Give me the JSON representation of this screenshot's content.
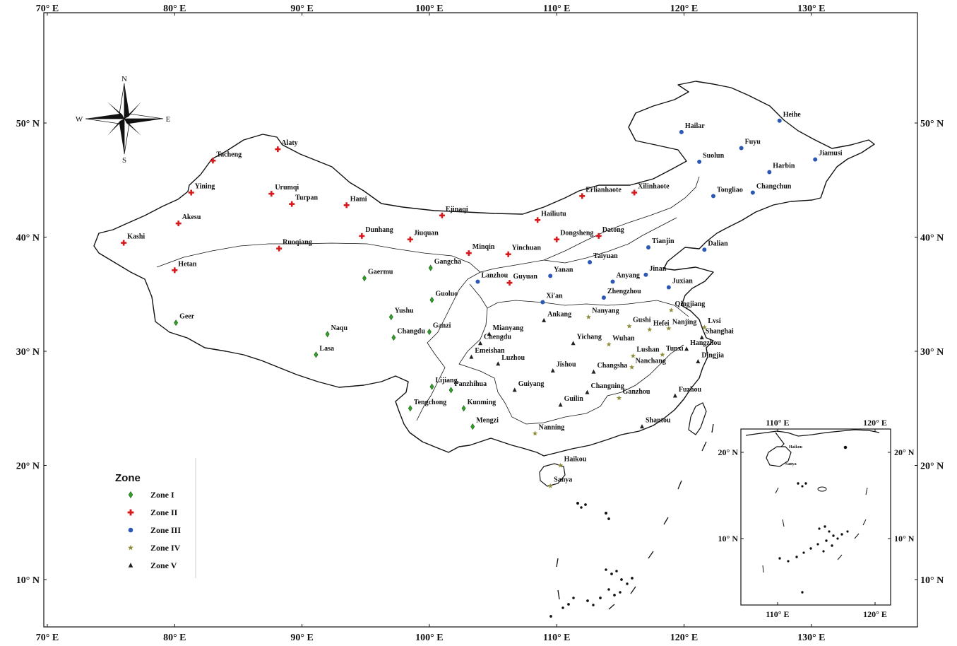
{
  "map": {
    "lon_ticks": [
      {
        "lon": 70,
        "label": "70° E"
      },
      {
        "lon": 80,
        "label": "80° E"
      },
      {
        "lon": 90,
        "label": "90° E"
      },
      {
        "lon": 100,
        "label": "100° E"
      },
      {
        "lon": 110,
        "label": "110° E"
      },
      {
        "lon": 120,
        "label": "120° E"
      },
      {
        "lon": 130,
        "label": "130° E"
      }
    ],
    "lat_ticks": [
      {
        "lat": 10,
        "label": "10° N"
      },
      {
        "lat": 20,
        "label": "20° N"
      },
      {
        "lat": 30,
        "label": "30° N"
      },
      {
        "lat": 40,
        "label": "40° N"
      },
      {
        "lat": 50,
        "label": "50° N"
      }
    ],
    "compass": {
      "n": "N",
      "s": "S",
      "w": "W",
      "e": "E"
    },
    "legend": {
      "title": "Zone",
      "items": [
        {
          "label": "Zone I",
          "symbol": "diamond",
          "color": "#33a02c"
        },
        {
          "label": "Zone II",
          "symbol": "cross",
          "color": "#d7191c"
        },
        {
          "label": "Zone III",
          "symbol": "circle",
          "color": "#2b57b5"
        },
        {
          "label": "Zone IV",
          "symbol": "star",
          "color": "#8f8c3a"
        },
        {
          "label": "Zone V",
          "symbol": "triangle",
          "color": "#222222"
        }
      ]
    },
    "stations": [
      {
        "name": "Geer",
        "zone": 0,
        "lon": 80.1,
        "lat": 32.5
      },
      {
        "name": "Gaermu",
        "zone": 0,
        "lon": 94.9,
        "lat": 36.4
      },
      {
        "name": "Gangcha",
        "zone": 0,
        "lon": 100.1,
        "lat": 37.3
      },
      {
        "name": "Guoluo",
        "zone": 0,
        "lon": 100.2,
        "lat": 34.5
      },
      {
        "name": "Yushu",
        "zone": 0,
        "lon": 97.0,
        "lat": 33.0
      },
      {
        "name": "Naqu",
        "zone": 0,
        "lon": 92.0,
        "lat": 31.5
      },
      {
        "name": "Changdu",
        "zone": 0,
        "lon": 97.2,
        "lat": 31.2
      },
      {
        "name": "Ganzi",
        "zone": 0,
        "lon": 100.0,
        "lat": 31.7
      },
      {
        "name": "Lasa",
        "zone": 0,
        "lon": 91.1,
        "lat": 29.7
      },
      {
        "name": "Lijiang",
        "zone": 0,
        "lon": 100.2,
        "lat": 26.9
      },
      {
        "name": "Panzhihua",
        "zone": 0,
        "lon": 101.7,
        "lat": 26.6
      },
      {
        "name": "Tengchong",
        "zone": 0,
        "lon": 98.5,
        "lat": 25.0
      },
      {
        "name": "Kunming",
        "zone": 0,
        "lon": 102.7,
        "lat": 25.0
      },
      {
        "name": "Mengzi",
        "zone": 0,
        "lon": 103.4,
        "lat": 23.4
      },
      {
        "name": "Alaty",
        "zone": 1,
        "lon": 88.1,
        "lat": 47.7
      },
      {
        "name": "Tacheng",
        "zone": 1,
        "lon": 83.0,
        "lat": 46.7
      },
      {
        "name": "Yining",
        "zone": 1,
        "lon": 81.3,
        "lat": 43.9
      },
      {
        "name": "Urumqi",
        "zone": 1,
        "lon": 87.6,
        "lat": 43.8
      },
      {
        "name": "Turpan",
        "zone": 1,
        "lon": 89.2,
        "lat": 42.9
      },
      {
        "name": "Hami",
        "zone": 1,
        "lon": 93.5,
        "lat": 42.8
      },
      {
        "name": "Akesu",
        "zone": 1,
        "lon": 80.3,
        "lat": 41.2
      },
      {
        "name": "Kashi",
        "zone": 1,
        "lon": 76.0,
        "lat": 39.5
      },
      {
        "name": "Ruoqiang",
        "zone": 1,
        "lon": 88.2,
        "lat": 39.0
      },
      {
        "name": "Hetan",
        "zone": 1,
        "lon": 80.0,
        "lat": 37.1
      },
      {
        "name": "Ejinaqi",
        "zone": 1,
        "lon": 101.0,
        "lat": 41.9
      },
      {
        "name": "Dunhang",
        "zone": 1,
        "lon": 94.7,
        "lat": 40.1
      },
      {
        "name": "Jiuquan",
        "zone": 1,
        "lon": 98.5,
        "lat": 39.8
      },
      {
        "name": "Minqin",
        "zone": 1,
        "lon": 103.1,
        "lat": 38.6
      },
      {
        "name": "Yinchuan",
        "zone": 1,
        "lon": 106.2,
        "lat": 38.5
      },
      {
        "name": "Guyuan",
        "zone": 1,
        "lon": 106.3,
        "lat": 36.0
      },
      {
        "name": "Hailiutu",
        "zone": 1,
        "lon": 108.5,
        "lat": 41.5
      },
      {
        "name": "Dongsheng",
        "zone": 1,
        "lon": 110.0,
        "lat": 39.8
      },
      {
        "name": "Datong",
        "zone": 1,
        "lon": 113.3,
        "lat": 40.1
      },
      {
        "name": "Erlianhaote",
        "zone": 1,
        "lon": 112.0,
        "lat": 43.6
      },
      {
        "name": "Xilinhaote",
        "zone": 1,
        "lon": 116.1,
        "lat": 43.9
      },
      {
        "name": "Hailar",
        "zone": 2,
        "lon": 119.8,
        "lat": 49.2
      },
      {
        "name": "Heihe",
        "zone": 2,
        "lon": 127.5,
        "lat": 50.2
      },
      {
        "name": "Fuyu",
        "zone": 2,
        "lon": 124.5,
        "lat": 47.8
      },
      {
        "name": "Suolun",
        "zone": 2,
        "lon": 121.2,
        "lat": 46.6
      },
      {
        "name": "Jiamusi",
        "zone": 2,
        "lon": 130.3,
        "lat": 46.8
      },
      {
        "name": "Harbin",
        "zone": 2,
        "lon": 126.7,
        "lat": 45.7
      },
      {
        "name": "Tongliao",
        "zone": 2,
        "lon": 122.3,
        "lat": 43.6
      },
      {
        "name": "Changchun",
        "zone": 2,
        "lon": 125.4,
        "lat": 43.9
      },
      {
        "name": "Tianjin",
        "zone": 2,
        "lon": 117.2,
        "lat": 39.1
      },
      {
        "name": "Dalian",
        "zone": 2,
        "lon": 121.6,
        "lat": 38.9
      },
      {
        "name": "Taiyuan",
        "zone": 2,
        "lon": 112.6,
        "lat": 37.8
      },
      {
        "name": "Yanan",
        "zone": 2,
        "lon": 109.5,
        "lat": 36.6
      },
      {
        "name": "Lanzhou",
        "zone": 2,
        "lon": 103.8,
        "lat": 36.1
      },
      {
        "name": "Anyang",
        "zone": 2,
        "lon": 114.4,
        "lat": 36.1
      },
      {
        "name": "Jinan",
        "zone": 2,
        "lon": 117.0,
        "lat": 36.7
      },
      {
        "name": "Juxian",
        "zone": 2,
        "lon": 118.8,
        "lat": 35.6
      },
      {
        "name": "Zhengzhou",
        "zone": 2,
        "lon": 113.7,
        "lat": 34.7
      },
      {
        "name": "Xi'an",
        "zone": 2,
        "lon": 108.9,
        "lat": 34.3
      },
      {
        "name": "Nanyang",
        "zone": 3,
        "lon": 112.5,
        "lat": 33.0
      },
      {
        "name": "Qingjiang",
        "zone": 3,
        "lon": 119.0,
        "lat": 33.6
      },
      {
        "name": "Gushi",
        "zone": 3,
        "lon": 115.7,
        "lat": 32.2
      },
      {
        "name": "Hefei",
        "zone": 3,
        "lon": 117.3,
        "lat": 31.9
      },
      {
        "name": "Nanjing",
        "zone": 3,
        "lon": 118.8,
        "lat": 32.0
      },
      {
        "name": "Lvsi",
        "zone": 3,
        "lon": 121.6,
        "lat": 32.1
      },
      {
        "name": "Wuhan",
        "zone": 3,
        "lon": 114.1,
        "lat": 30.6
      },
      {
        "name": "Lushan",
        "zone": 3,
        "lon": 116.0,
        "lat": 29.6
      },
      {
        "name": "Tunxi",
        "zone": 3,
        "lon": 118.3,
        "lat": 29.7
      },
      {
        "name": "Nanchang",
        "zone": 3,
        "lon": 115.9,
        "lat": 28.6
      },
      {
        "name": "Ganzhou",
        "zone": 3,
        "lon": 114.9,
        "lat": 25.9
      },
      {
        "name": "Nanning",
        "zone": 3,
        "lon": 108.3,
        "lat": 22.8
      },
      {
        "name": "Haikou",
        "zone": 3,
        "lon": 110.3,
        "lat": 20.0
      },
      {
        "name": "Sanya",
        "zone": 3,
        "lon": 109.5,
        "lat": 18.2
      },
      {
        "name": "Mianyang",
        "zone": 4,
        "lon": 104.7,
        "lat": 31.5
      },
      {
        "name": "Chengdu",
        "zone": 4,
        "lon": 104.0,
        "lat": 30.7
      },
      {
        "name": "Emeishan",
        "zone": 4,
        "lon": 103.3,
        "lat": 29.5
      },
      {
        "name": "Luzhou",
        "zone": 4,
        "lon": 105.4,
        "lat": 28.9
      },
      {
        "name": "Ankang",
        "zone": 4,
        "lon": 109.0,
        "lat": 32.7
      },
      {
        "name": "Yichang",
        "zone": 4,
        "lon": 111.3,
        "lat": 30.7
      },
      {
        "name": "Jishou",
        "zone": 4,
        "lon": 109.7,
        "lat": 28.3
      },
      {
        "name": "Changsha",
        "zone": 4,
        "lon": 112.9,
        "lat": 28.2
      },
      {
        "name": "Guiyang",
        "zone": 4,
        "lon": 106.7,
        "lat": 26.6
      },
      {
        "name": "Changning",
        "zone": 4,
        "lon": 112.4,
        "lat": 26.4
      },
      {
        "name": "Guilin",
        "zone": 4,
        "lon": 110.3,
        "lat": 25.3
      },
      {
        "name": "Shanghai",
        "zone": 4,
        "lon": 121.4,
        "lat": 31.2
      },
      {
        "name": "Hangzhou",
        "zone": 4,
        "lon": 120.2,
        "lat": 30.2
      },
      {
        "name": "Dingjia",
        "zone": 4,
        "lon": 121.1,
        "lat": 29.1
      },
      {
        "name": "Fuzhou",
        "zone": 4,
        "lon": 119.3,
        "lat": 26.1
      },
      {
        "name": "Shantou",
        "zone": 4,
        "lon": 116.7,
        "lat": 23.4
      }
    ],
    "inset": {
      "lon_ticks": [
        {
          "lon": 110,
          "label": "110° E"
        },
        {
          "lon": 120,
          "label": "120° E"
        }
      ],
      "lat_ticks": [
        {
          "lat": 10,
          "label": "10° N"
        },
        {
          "lat": 20,
          "label": "20° N"
        }
      ],
      "cities": [
        {
          "name": "Haikou"
        },
        {
          "name": "Sanya"
        }
      ]
    }
  }
}
